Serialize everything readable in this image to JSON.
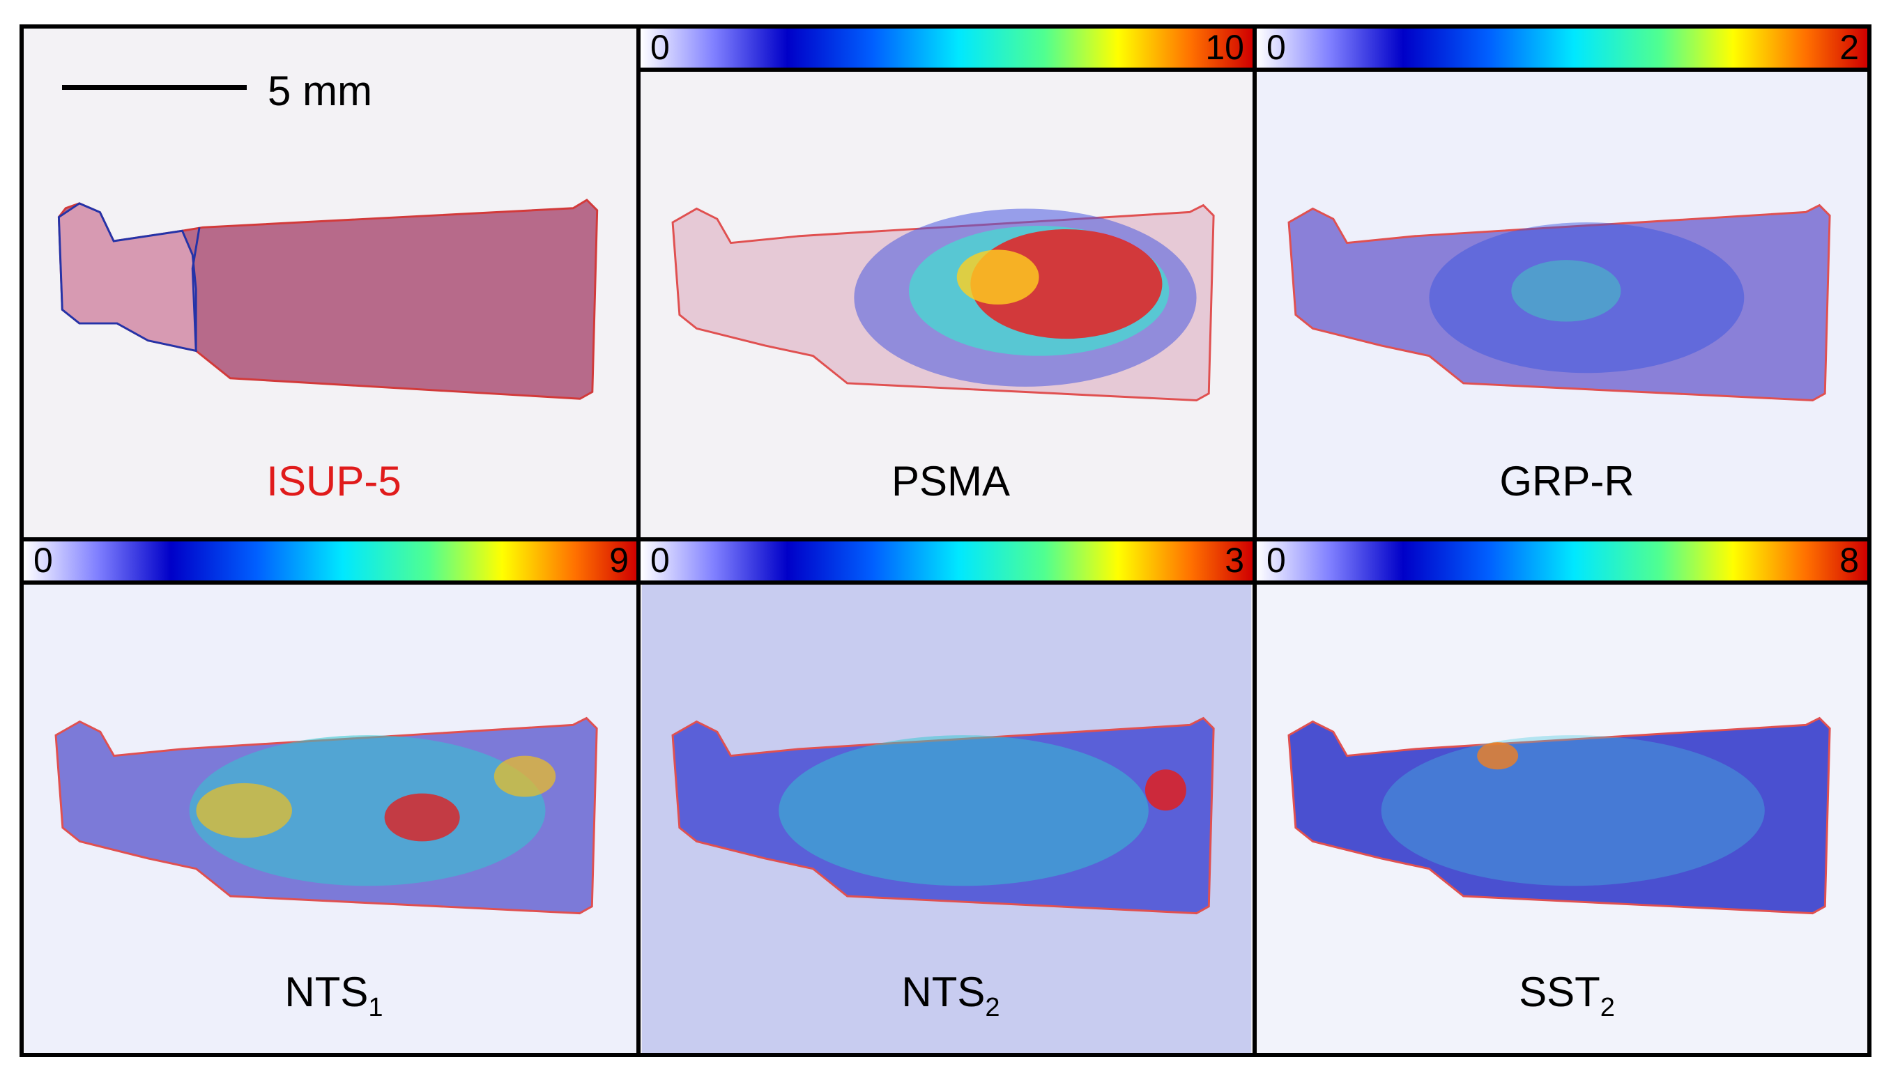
{
  "panels": [
    {
      "id": "he",
      "label": "ISUP-5",
      "sub": ""
    },
    {
      "id": "psma",
      "label": "PSMA",
      "sub": ""
    },
    {
      "id": "grpr",
      "label": "GRP-R",
      "sub": ""
    },
    {
      "id": "nts1",
      "label": "NTS",
      "sub": "1"
    },
    {
      "id": "nts2",
      "label": "NTS",
      "sub": "2"
    },
    {
      "id": "sst2",
      "label": "SST",
      "sub": "2"
    }
  ],
  "scale_bar": {
    "label": "5 mm"
  },
  "colorbars": [
    {
      "panel": "PSMA",
      "min": "0",
      "max": "10"
    },
    {
      "panel": "GRP-R",
      "min": "0",
      "max": "2"
    },
    {
      "panel": "NTS1",
      "min": "0",
      "max": "9"
    },
    {
      "panel": "NTS2",
      "min": "0",
      "max": "3"
    },
    {
      "panel": "SST2",
      "min": "0",
      "max": "8"
    }
  ],
  "colors": {
    "label_red": "#e01b1b",
    "tissue_outline": "#e05050",
    "benign_outline": "#2030b0"
  }
}
